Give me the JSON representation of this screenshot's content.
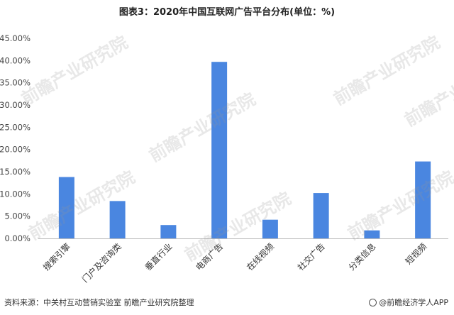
{
  "chart_data": {
    "type": "bar",
    "title": "图表3：2020年中国互联网广告平台分布(单位：%)",
    "categories": [
      "搜索引擎",
      "门户及咨询类",
      "垂直行业",
      "电商广告",
      "在线视频",
      "社交广告",
      "分类信息",
      "短视频"
    ],
    "values": [
      13.8,
      8.4,
      3.0,
      39.7,
      4.2,
      10.2,
      1.8,
      17.3
    ],
    "ylim": [
      0,
      45
    ],
    "yticks": [
      "0.00%",
      "5.00%",
      "10.00%",
      "15.00%",
      "20.00%",
      "25.00%",
      "30.00%",
      "35.00%",
      "40.00%",
      "45.00%"
    ],
    "bar_color": "#4a86e0",
    "grid": false
  },
  "watermark": "前瞻产业研究院",
  "footer": {
    "source": "资料来源：中关村互动营销实验室 前瞻产业研究院整理",
    "brand": "@前瞻经济学人APP"
  }
}
